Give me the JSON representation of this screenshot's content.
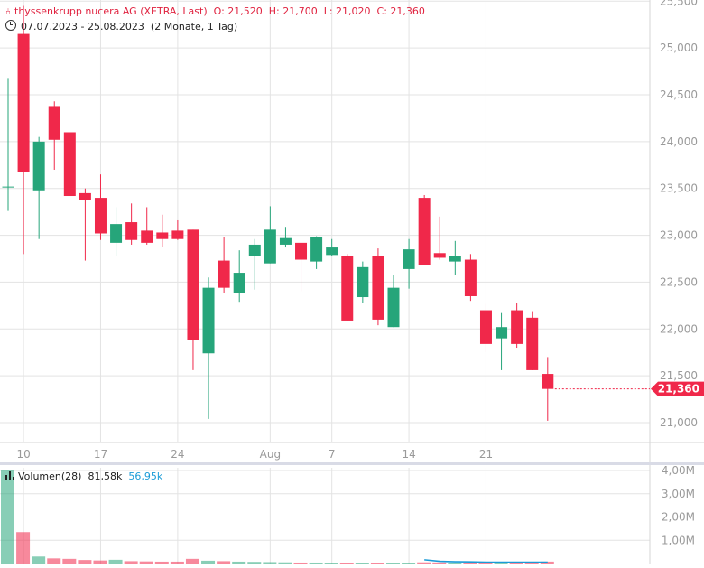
{
  "header": {
    "title_icon": "candlestick-icon",
    "name": "thyssenkrupp nucera AG (XETRA, Last)",
    "ohlc": "O: 21,520  H: 21,700  L: 21,020  C: 21,360",
    "range": "07.07.2023 - 25.08.2023  (2 Monate, 1 Tag)"
  },
  "price_axis_ticks": [
    "21,000",
    "21,500",
    "22,000",
    "22,500",
    "23,000",
    "23,500",
    "24,000",
    "24,500",
    "25,000",
    "25,500"
  ],
  "last_price_label": "21,360",
  "volume": {
    "legend_label": "Volumen(28)",
    "value": "81,58k",
    "average": "56,95k",
    "axis_ticks": [
      "1,00M",
      "2,00M",
      "3,00M",
      "4,00M"
    ]
  },
  "colors": {
    "up": "#26a57a",
    "down": "#f0284a",
    "avg_line": "#1a9bd7",
    "grid": "#e3e3e3"
  },
  "chart_data": {
    "type": "candlestick",
    "title": "thyssenkrupp nucera AG (XETRA, Last)",
    "x_tick_labels": [
      {
        "date": "2023-07-10",
        "label": "10"
      },
      {
        "date": "2023-07-17",
        "label": "17"
      },
      {
        "date": "2023-07-24",
        "label": "24"
      },
      {
        "date": "2023-08-01",
        "label": "Aug"
      },
      {
        "date": "2023-08-07",
        "label": "7"
      },
      {
        "date": "2023-08-14",
        "label": "14"
      },
      {
        "date": "2023-08-21",
        "label": "21"
      }
    ],
    "ylim": [
      20600,
      25500
    ],
    "grid": true,
    "candles": [
      {
        "date": "2023-07-07",
        "o": 23520,
        "h": 24680,
        "l": 23260,
        "c": 23520,
        "v": 4000000
      },
      {
        "date": "2023-07-10",
        "o": 25150,
        "h": 25450,
        "l": 22800,
        "c": 23680,
        "v": 1350000
      },
      {
        "date": "2023-07-11",
        "o": 23480,
        "h": 24050,
        "l": 22960,
        "c": 24000,
        "v": 300000
      },
      {
        "date": "2023-07-12",
        "o": 24380,
        "h": 24430,
        "l": 23700,
        "c": 24020,
        "v": 220000
      },
      {
        "date": "2023-07-13",
        "o": 24100,
        "h": 24100,
        "l": 23420,
        "c": 23420,
        "v": 200000
      },
      {
        "date": "2023-07-14",
        "o": 23450,
        "h": 23500,
        "l": 22730,
        "c": 23380,
        "v": 150000
      },
      {
        "date": "2023-07-17",
        "o": 23400,
        "h": 23650,
        "l": 22950,
        "c": 23020,
        "v": 130000
      },
      {
        "date": "2023-07-18",
        "o": 22920,
        "h": 23300,
        "l": 22780,
        "c": 23120,
        "v": 160000
      },
      {
        "date": "2023-07-19",
        "o": 23140,
        "h": 23340,
        "l": 22900,
        "c": 22950,
        "v": 100000
      },
      {
        "date": "2023-07-20",
        "o": 23050,
        "h": 23300,
        "l": 22900,
        "c": 22920,
        "v": 90000
      },
      {
        "date": "2023-07-21",
        "o": 23030,
        "h": 23220,
        "l": 22880,
        "c": 22960,
        "v": 80000
      },
      {
        "date": "2023-07-24",
        "o": 23050,
        "h": 23160,
        "l": 22950,
        "c": 22960,
        "v": 80000
      },
      {
        "date": "2023-07-25",
        "o": 23060,
        "h": 23060,
        "l": 21560,
        "c": 21880,
        "v": 200000
      },
      {
        "date": "2023-07-26",
        "o": 21740,
        "h": 22550,
        "l": 21040,
        "c": 22440,
        "v": 120000
      },
      {
        "date": "2023-07-27",
        "o": 22730,
        "h": 22980,
        "l": 22380,
        "c": 22440,
        "v": 100000
      },
      {
        "date": "2023-07-28",
        "o": 22380,
        "h": 22840,
        "l": 22290,
        "c": 22600,
        "v": 80000
      },
      {
        "date": "2023-07-31",
        "o": 22780,
        "h": 22960,
        "l": 22420,
        "c": 22900,
        "v": 70000
      },
      {
        "date": "2023-08-01",
        "o": 22700,
        "h": 23310,
        "l": 22700,
        "c": 23060,
        "v": 60000
      },
      {
        "date": "2023-08-02",
        "o": 22900,
        "h": 23090,
        "l": 22870,
        "c": 22970,
        "v": 50000
      },
      {
        "date": "2023-08-03",
        "o": 22920,
        "h": 22920,
        "l": 22400,
        "c": 22740,
        "v": 40000
      },
      {
        "date": "2023-08-04",
        "o": 22720,
        "h": 22990,
        "l": 22640,
        "c": 22980,
        "v": 40000
      },
      {
        "date": "2023-08-07",
        "o": 22790,
        "h": 22960,
        "l": 22780,
        "c": 22870,
        "v": 35000
      },
      {
        "date": "2023-08-08",
        "o": 22780,
        "h": 22800,
        "l": 22080,
        "c": 22090,
        "v": 35000
      },
      {
        "date": "2023-08-09",
        "o": 22340,
        "h": 22720,
        "l": 22280,
        "c": 22660,
        "v": 35000
      },
      {
        "date": "2023-08-10",
        "o": 22780,
        "h": 22860,
        "l": 22040,
        "c": 22100,
        "v": 30000
      },
      {
        "date": "2023-08-11",
        "o": 22020,
        "h": 22580,
        "l": 22020,
        "c": 22440,
        "v": 30000
      },
      {
        "date": "2023-08-14",
        "o": 22640,
        "h": 22960,
        "l": 22430,
        "c": 22850,
        "v": 30000
      },
      {
        "date": "2023-08-15",
        "o": 23400,
        "h": 23430,
        "l": 22680,
        "c": 22680,
        "v": 50000
      },
      {
        "date": "2023-08-16",
        "o": 22810,
        "h": 23200,
        "l": 22740,
        "c": 22760,
        "v": 45000
      },
      {
        "date": "2023-08-17",
        "o": 22720,
        "h": 22940,
        "l": 22580,
        "c": 22780,
        "v": 40000
      },
      {
        "date": "2023-08-18",
        "o": 22740,
        "h": 22800,
        "l": 22300,
        "c": 22350,
        "v": 40000
      },
      {
        "date": "2023-08-21",
        "o": 22200,
        "h": 22270,
        "l": 21750,
        "c": 21840,
        "v": 45000
      },
      {
        "date": "2023-08-22",
        "o": 21900,
        "h": 22170,
        "l": 21560,
        "c": 22020,
        "v": 40000
      },
      {
        "date": "2023-08-23",
        "o": 22200,
        "h": 22280,
        "l": 21800,
        "c": 21840,
        "v": 45000
      },
      {
        "date": "2023-08-24",
        "o": 22120,
        "h": 22190,
        "l": 21560,
        "c": 21560,
        "v": 50000
      },
      {
        "date": "2023-08-25",
        "o": 21520,
        "h": 21700,
        "l": 21020,
        "c": 21360,
        "v": 81580
      }
    ],
    "volume_average": [
      {
        "date": "2023-08-15",
        "v": 160000
      },
      {
        "date": "2023-08-16",
        "v": 95000
      },
      {
        "date": "2023-08-17",
        "v": 75000
      },
      {
        "date": "2023-08-18",
        "v": 70000
      },
      {
        "date": "2023-08-21",
        "v": 58000
      },
      {
        "date": "2023-08-22",
        "v": 55000
      },
      {
        "date": "2023-08-23",
        "v": 54000
      },
      {
        "date": "2023-08-24",
        "v": 54000
      },
      {
        "date": "2023-08-25",
        "v": 56950
      }
    ],
    "volume_ylim": [
      0,
      4200000
    ]
  }
}
